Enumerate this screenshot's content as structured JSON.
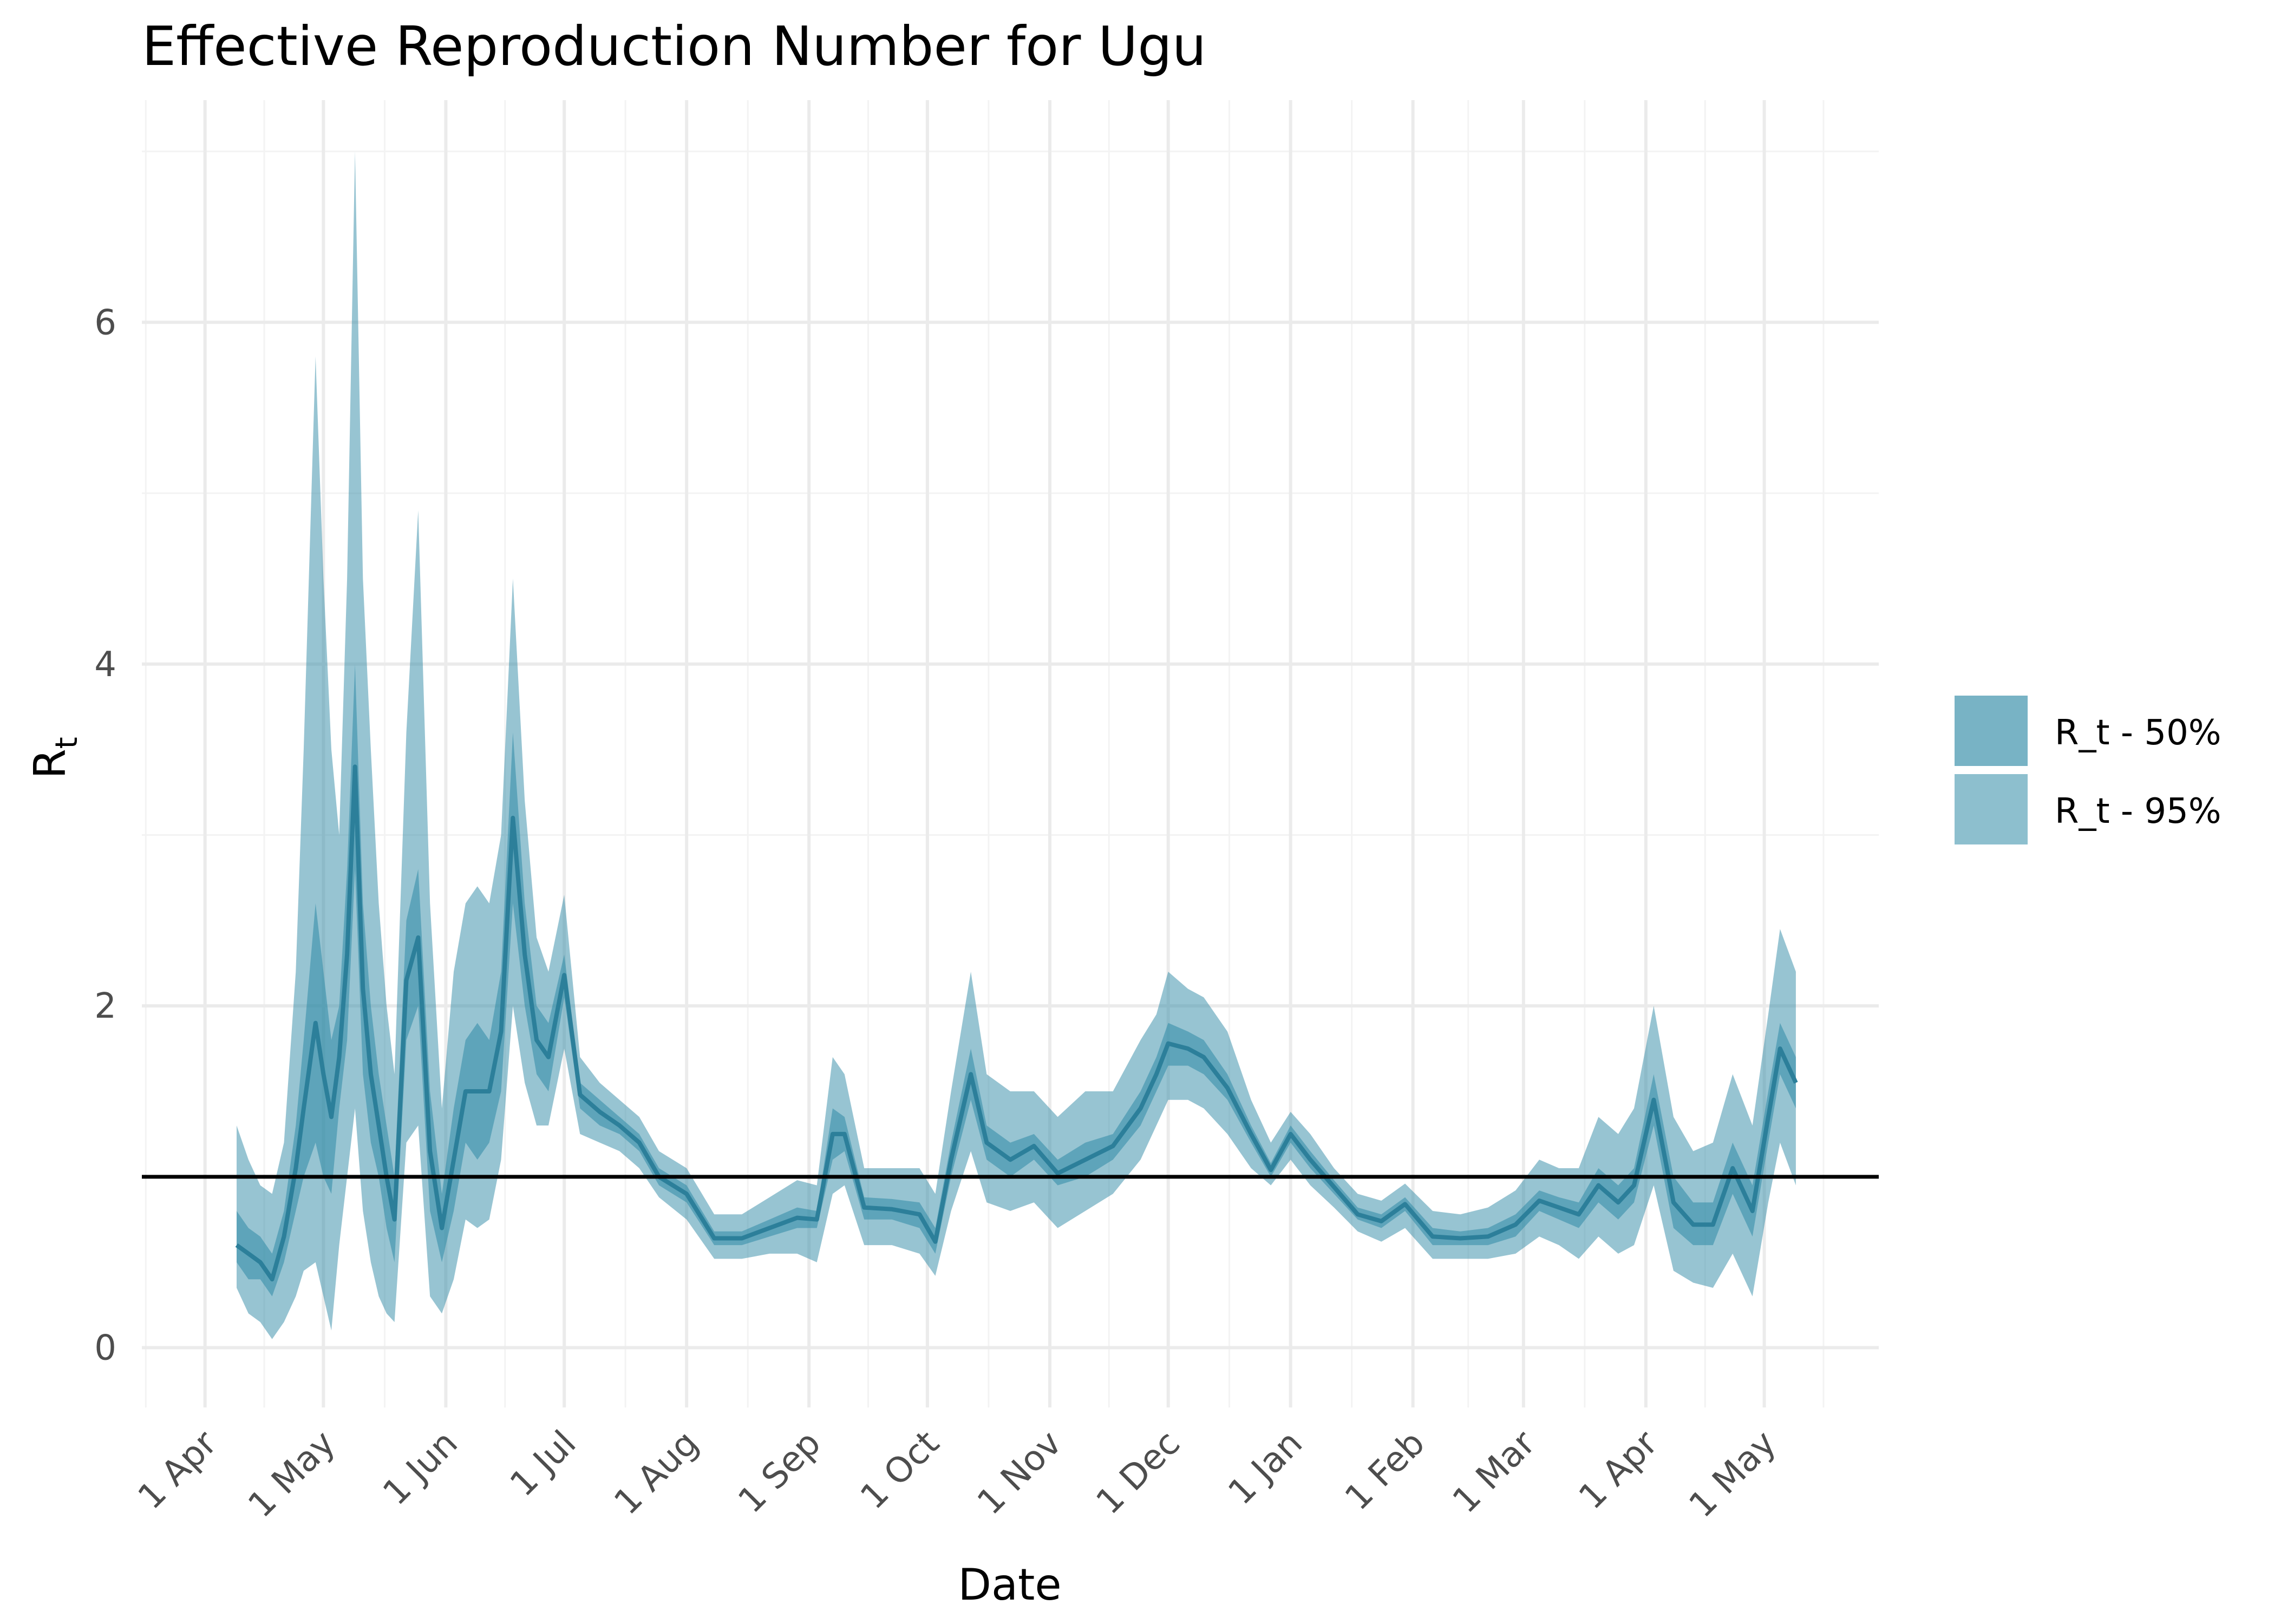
{
  "chart_data": {
    "type": "area",
    "title": "Effective Reproduction Number for Ugu",
    "xlabel": "Date",
    "ylabel": "R",
    "ylabel_subscript": "t",
    "x_tick_labels": [
      "1 Apr",
      "1 May",
      "1 Jun",
      "1 Jul",
      "1 Aug",
      "1 Sep",
      "1 Oct",
      "1 Nov",
      "1 Dec",
      "1 Jan",
      "1 Feb",
      "1 Mar",
      "1 Apr",
      "1 May"
    ],
    "x_tick_dates": [
      "2020-04-01",
      "2020-05-01",
      "2020-06-01",
      "2020-07-01",
      "2020-08-01",
      "2020-09-01",
      "2020-10-01",
      "2020-11-01",
      "2020-12-01",
      "2021-01-01",
      "2021-02-01",
      "2021-03-01",
      "2021-04-01",
      "2021-05-01"
    ],
    "xlim": [
      "2020-03-16",
      "2021-05-30"
    ],
    "ylim": [
      -0.35,
      7.3
    ],
    "y_ticks": [
      0,
      2,
      4,
      6
    ],
    "reference_line": 1,
    "grid": true,
    "legend_position": "right",
    "colors": {
      "band50": "#2f8aa6",
      "band95": "#2f8aa6",
      "line": "#2c7f9a",
      "ref": "#000000"
    },
    "series": [
      {
        "name": "R_t - 50%",
        "x": [
          "2020-04-09",
          "2020-04-12",
          "2020-04-15",
          "2020-04-18",
          "2020-04-21",
          "2020-04-24",
          "2020-04-26",
          "2020-04-29",
          "2020-05-01",
          "2020-05-03",
          "2020-05-05",
          "2020-05-07",
          "2020-05-09",
          "2020-05-11",
          "2020-05-13",
          "2020-05-15",
          "2020-05-17",
          "2020-05-19",
          "2020-05-22",
          "2020-05-25",
          "2020-05-28",
          "2020-05-31",
          "2020-06-03",
          "2020-06-06",
          "2020-06-09",
          "2020-06-12",
          "2020-06-15",
          "2020-06-18",
          "2020-06-21",
          "2020-06-24",
          "2020-06-27",
          "2020-07-01",
          "2020-07-05",
          "2020-07-10",
          "2020-07-15",
          "2020-07-20",
          "2020-07-25",
          "2020-08-01",
          "2020-08-08",
          "2020-08-15",
          "2020-08-22",
          "2020-08-29",
          "2020-09-03",
          "2020-09-07",
          "2020-09-10",
          "2020-09-15",
          "2020-09-22",
          "2020-09-29",
          "2020-10-03",
          "2020-10-07",
          "2020-10-12",
          "2020-10-16",
          "2020-10-22",
          "2020-10-28",
          "2020-11-03",
          "2020-11-10",
          "2020-11-17",
          "2020-11-24",
          "2020-11-28",
          "2020-12-01",
          "2020-12-06",
          "2020-12-10",
          "2020-12-16",
          "2020-12-22",
          "2020-12-27",
          "2021-01-01",
          "2021-01-06",
          "2021-01-12",
          "2021-01-18",
          "2021-01-24",
          "2021-01-30",
          "2021-02-06",
          "2021-02-13",
          "2021-02-20",
          "2021-02-27",
          "2021-03-05",
          "2021-03-10",
          "2021-03-15",
          "2021-03-20",
          "2021-03-25",
          "2021-03-29",
          "2021-04-03",
          "2021-04-08",
          "2021-04-13",
          "2021-04-18",
          "2021-04-23",
          "2021-04-28",
          "2021-05-02",
          "2021-05-05",
          "2021-05-09"
        ],
        "lower": [
          0.5,
          0.4,
          0.4,
          0.3,
          0.5,
          0.8,
          1.0,
          1.2,
          1.0,
          0.9,
          1.4,
          1.8,
          2.8,
          1.6,
          1.2,
          1.0,
          0.7,
          0.5,
          1.8,
          2.0,
          0.8,
          0.5,
          0.8,
          1.2,
          1.1,
          1.2,
          1.5,
          2.6,
          2.0,
          1.6,
          1.5,
          2.05,
          1.4,
          1.3,
          1.25,
          1.15,
          0.95,
          0.85,
          0.6,
          0.6,
          0.65,
          0.7,
          0.7,
          1.1,
          1.15,
          0.75,
          0.75,
          0.7,
          0.55,
          1.0,
          1.45,
          1.1,
          1.0,
          1.1,
          0.95,
          1.0,
          1.1,
          1.3,
          1.5,
          1.65,
          1.65,
          1.6,
          1.45,
          1.2,
          1.0,
          1.2,
          1.05,
          0.9,
          0.75,
          0.7,
          0.8,
          0.6,
          0.6,
          0.6,
          0.65,
          0.8,
          0.75,
          0.7,
          0.85,
          0.75,
          0.85,
          1.3,
          0.7,
          0.6,
          0.6,
          0.9,
          0.65,
          1.2,
          1.6,
          1.4
        ],
        "upper": [
          0.8,
          0.7,
          0.65,
          0.55,
          0.8,
          1.3,
          1.8,
          2.6,
          2.2,
          1.8,
          2.0,
          2.8,
          4.0,
          2.6,
          2.0,
          1.6,
          1.3,
          1.0,
          2.5,
          2.8,
          1.5,
          0.9,
          1.4,
          1.8,
          1.9,
          1.8,
          2.2,
          3.6,
          2.6,
          2.0,
          1.9,
          2.3,
          1.55,
          1.45,
          1.35,
          1.25,
          1.05,
          0.95,
          0.68,
          0.68,
          0.75,
          0.82,
          0.8,
          1.4,
          1.35,
          0.88,
          0.87,
          0.85,
          0.7,
          1.2,
          1.75,
          1.3,
          1.2,
          1.25,
          1.1,
          1.2,
          1.25,
          1.5,
          1.7,
          1.9,
          1.85,
          1.8,
          1.6,
          1.3,
          1.08,
          1.3,
          1.15,
          0.98,
          0.82,
          0.78,
          0.88,
          0.7,
          0.68,
          0.7,
          0.78,
          0.92,
          0.88,
          0.85,
          1.05,
          0.95,
          1.05,
          1.6,
          1.0,
          0.85,
          0.85,
          1.2,
          0.95,
          1.5,
          1.9,
          1.7
        ]
      },
      {
        "name": "R_t - 95%",
        "x": [
          "2020-04-09",
          "2020-04-12",
          "2020-04-15",
          "2020-04-18",
          "2020-04-21",
          "2020-04-24",
          "2020-04-26",
          "2020-04-29",
          "2020-05-01",
          "2020-05-03",
          "2020-05-05",
          "2020-05-07",
          "2020-05-09",
          "2020-05-11",
          "2020-05-13",
          "2020-05-15",
          "2020-05-17",
          "2020-05-19",
          "2020-05-22",
          "2020-05-25",
          "2020-05-28",
          "2020-05-31",
          "2020-06-03",
          "2020-06-06",
          "2020-06-09",
          "2020-06-12",
          "2020-06-15",
          "2020-06-18",
          "2020-06-21",
          "2020-06-24",
          "2020-06-27",
          "2020-07-01",
          "2020-07-05",
          "2020-07-10",
          "2020-07-15",
          "2020-07-20",
          "2020-07-25",
          "2020-08-01",
          "2020-08-08",
          "2020-08-15",
          "2020-08-22",
          "2020-08-29",
          "2020-09-03",
          "2020-09-07",
          "2020-09-10",
          "2020-09-15",
          "2020-09-22",
          "2020-09-29",
          "2020-10-03",
          "2020-10-07",
          "2020-10-12",
          "2020-10-16",
          "2020-10-22",
          "2020-10-28",
          "2020-11-03",
          "2020-11-10",
          "2020-11-17",
          "2020-11-24",
          "2020-11-28",
          "2020-12-01",
          "2020-12-06",
          "2020-12-10",
          "2020-12-16",
          "2020-12-22",
          "2020-12-27",
          "2021-01-01",
          "2021-01-06",
          "2021-01-12",
          "2021-01-18",
          "2021-01-24",
          "2021-01-30",
          "2021-02-06",
          "2021-02-13",
          "2021-02-20",
          "2021-02-27",
          "2021-03-05",
          "2021-03-10",
          "2021-03-15",
          "2021-03-20",
          "2021-03-25",
          "2021-03-29",
          "2021-04-03",
          "2021-04-08",
          "2021-04-13",
          "2021-04-18",
          "2021-04-23",
          "2021-04-28",
          "2021-05-02",
          "2021-05-05",
          "2021-05-09"
        ],
        "lower": [
          0.35,
          0.2,
          0.15,
          0.05,
          0.15,
          0.3,
          0.45,
          0.5,
          0.3,
          0.1,
          0.6,
          1.0,
          1.4,
          0.8,
          0.5,
          0.3,
          0.2,
          0.15,
          1.2,
          1.3,
          0.3,
          0.2,
          0.4,
          0.75,
          0.7,
          0.75,
          1.1,
          2.0,
          1.55,
          1.3,
          1.3,
          1.75,
          1.25,
          1.2,
          1.15,
          1.05,
          0.88,
          0.75,
          0.52,
          0.52,
          0.55,
          0.55,
          0.5,
          0.9,
          0.95,
          0.6,
          0.6,
          0.55,
          0.42,
          0.8,
          1.15,
          0.85,
          0.8,
          0.85,
          0.7,
          0.8,
          0.9,
          1.1,
          1.3,
          1.45,
          1.45,
          1.4,
          1.25,
          1.05,
          0.95,
          1.1,
          0.95,
          0.82,
          0.68,
          0.62,
          0.7,
          0.52,
          0.52,
          0.52,
          0.55,
          0.65,
          0.6,
          0.52,
          0.65,
          0.55,
          0.6,
          0.95,
          0.45,
          0.38,
          0.35,
          0.55,
          0.3,
          0.85,
          1.2,
          0.95
        ],
        "upper": [
          1.3,
          1.1,
          0.95,
          0.9,
          1.2,
          2.2,
          3.5,
          5.8,
          4.5,
          3.5,
          3.0,
          4.5,
          7.0,
          4.5,
          3.5,
          2.6,
          2.0,
          1.6,
          3.6,
          4.9,
          2.6,
          1.4,
          2.2,
          2.6,
          2.7,
          2.6,
          3.0,
          4.5,
          3.2,
          2.4,
          2.2,
          2.65,
          1.7,
          1.55,
          1.45,
          1.35,
          1.15,
          1.05,
          0.78,
          0.78,
          0.88,
          0.98,
          0.95,
          1.7,
          1.6,
          1.05,
          1.05,
          1.05,
          0.9,
          1.5,
          2.2,
          1.6,
          1.5,
          1.5,
          1.35,
          1.5,
          1.5,
          1.8,
          1.95,
          2.2,
          2.1,
          2.05,
          1.85,
          1.45,
          1.2,
          1.38,
          1.25,
          1.05,
          0.9,
          0.86,
          0.96,
          0.8,
          0.78,
          0.82,
          0.92,
          1.1,
          1.05,
          1.05,
          1.35,
          1.25,
          1.4,
          2.0,
          1.35,
          1.15,
          1.2,
          1.6,
          1.3,
          1.95,
          2.45,
          2.2
        ]
      }
    ],
    "median": [
      0.6,
      0.55,
      0.5,
      0.4,
      0.65,
      1.05,
      1.4,
      1.9,
      1.6,
      1.35,
      1.7,
      2.3,
      3.4,
      2.1,
      1.6,
      1.3,
      1.0,
      0.75,
      2.15,
      2.4,
      1.15,
      0.7,
      1.1,
      1.5,
      1.5,
      1.5,
      1.85,
      3.1,
      2.3,
      1.8,
      1.7,
      2.18,
      1.48,
      1.38,
      1.3,
      1.2,
      1.0,
      0.9,
      0.64,
      0.64,
      0.7,
      0.76,
      0.75,
      1.25,
      1.25,
      0.82,
      0.81,
      0.78,
      0.62,
      1.1,
      1.6,
      1.2,
      1.1,
      1.18,
      1.02,
      1.1,
      1.18,
      1.4,
      1.6,
      1.78,
      1.75,
      1.7,
      1.52,
      1.25,
      1.04,
      1.25,
      1.1,
      0.94,
      0.78,
      0.74,
      0.84,
      0.65,
      0.64,
      0.65,
      0.72,
      0.86,
      0.82,
      0.78,
      0.95,
      0.85,
      0.95,
      1.45,
      0.85,
      0.72,
      0.72,
      1.05,
      0.8,
      1.35,
      1.75,
      1.55
    ]
  },
  "legend": {
    "items": [
      {
        "label": "R_t - 50%",
        "opacity": 0.65
      },
      {
        "label": "R_t - 95%",
        "opacity": 0.55
      }
    ]
  }
}
